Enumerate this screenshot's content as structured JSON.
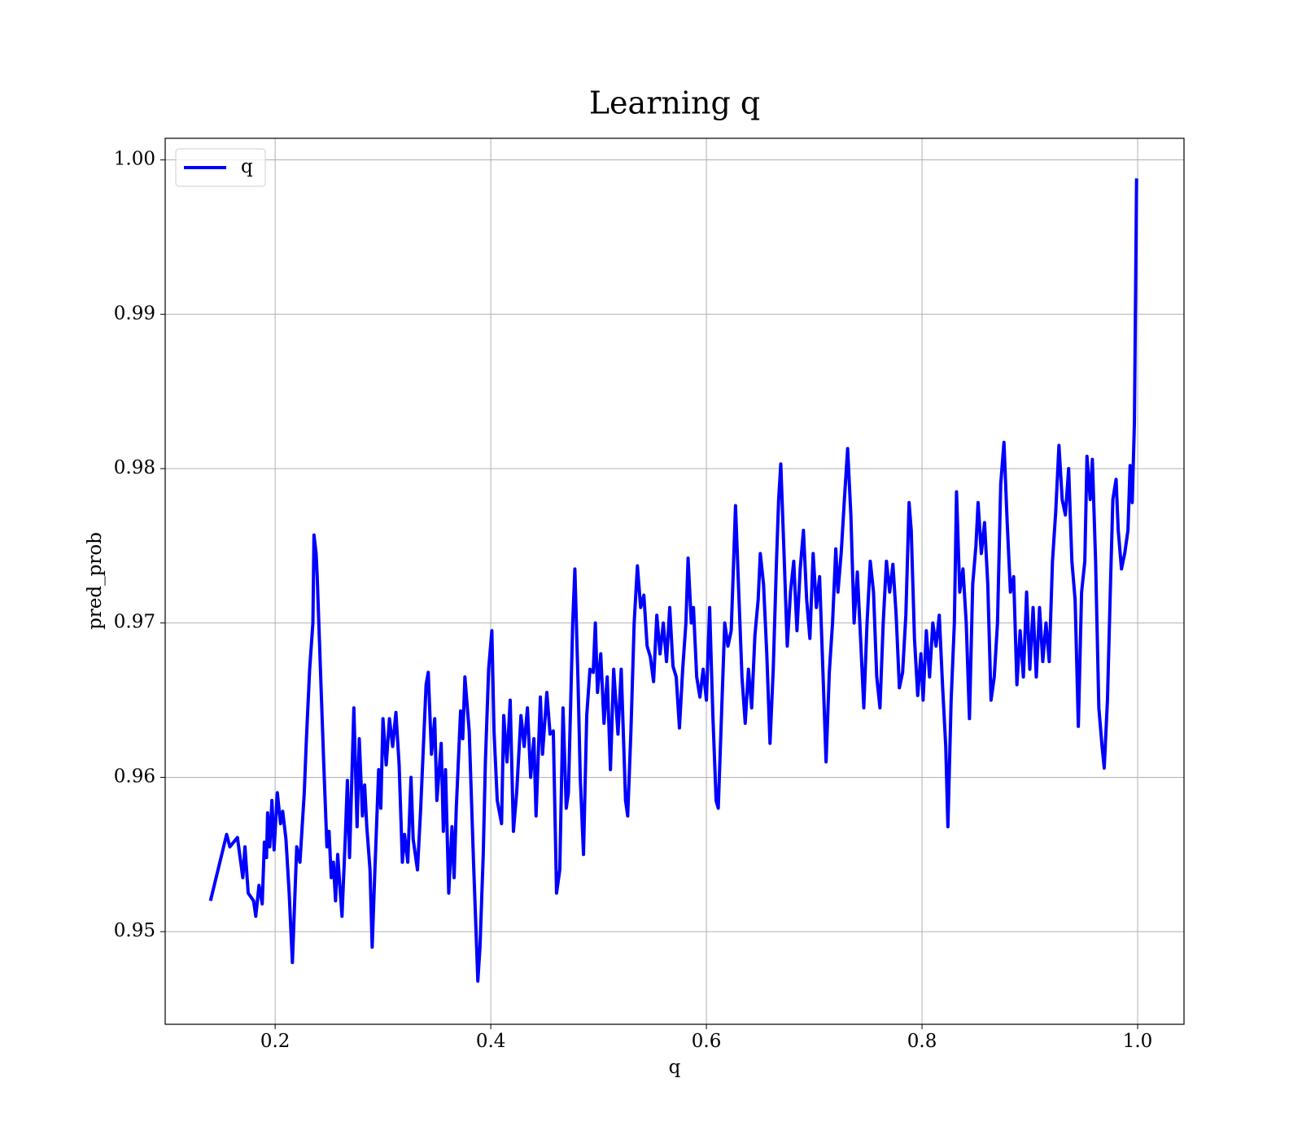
{
  "chart_data": {
    "type": "line",
    "title": "Learning q",
    "xlabel": "q",
    "ylabel": "pred_prob",
    "x": [
      0.14,
      0.155,
      0.158,
      0.165,
      0.17,
      0.172,
      0.175,
      0.18,
      0.182,
      0.185,
      0.188,
      0.19,
      0.192,
      0.193,
      0.195,
      0.197,
      0.199,
      0.202,
      0.205,
      0.207,
      0.21,
      0.213,
      0.216,
      0.22,
      0.223,
      0.227,
      0.229,
      0.232,
      0.235,
      0.236,
      0.238,
      0.239,
      0.242,
      0.245,
      0.248,
      0.25,
      0.252,
      0.254,
      0.256,
      0.258,
      0.262,
      0.265,
      0.267,
      0.269,
      0.273,
      0.276,
      0.278,
      0.281,
      0.283,
      0.285,
      0.288,
      0.29,
      0.292,
      0.296,
      0.298,
      0.3,
      0.303,
      0.306,
      0.309,
      0.312,
      0.315,
      0.318,
      0.32,
      0.323,
      0.326,
      0.328,
      0.332,
      0.335,
      0.34,
      0.342,
      0.345,
      0.348,
      0.35,
      0.354,
      0.356,
      0.358,
      0.361,
      0.364,
      0.366,
      0.368,
      0.372,
      0.374,
      0.376,
      0.38,
      0.384,
      0.388,
      0.39,
      0.393,
      0.395,
      0.398,
      0.401,
      0.403,
      0.406,
      0.41,
      0.412,
      0.415,
      0.418,
      0.421,
      0.424,
      0.428,
      0.431,
      0.434,
      0.437,
      0.44,
      0.442,
      0.446,
      0.448,
      0.452,
      0.455,
      0.458,
      0.461,
      0.464,
      0.467,
      0.47,
      0.472,
      0.476,
      0.478,
      0.481,
      0.483,
      0.486,
      0.489,
      0.492,
      0.495,
      0.497,
      0.499,
      0.502,
      0.505,
      0.508,
      0.511,
      0.514,
      0.518,
      0.521,
      0.525,
      0.527,
      0.53,
      0.533,
      0.536,
      0.539,
      0.542,
      0.545,
      0.548,
      0.551,
      0.554,
      0.557,
      0.56,
      0.563,
      0.566,
      0.569,
      0.572,
      0.575,
      0.578,
      0.581,
      0.583,
      0.586,
      0.588,
      0.591,
      0.594,
      0.597,
      0.6,
      0.603,
      0.606,
      0.609,
      0.611,
      0.614,
      0.617,
      0.62,
      0.623,
      0.625,
      0.627,
      0.63,
      0.633,
      0.636,
      0.639,
      0.642,
      0.645,
      0.648,
      0.65,
      0.653,
      0.656,
      0.659,
      0.662,
      0.665,
      0.667,
      0.669,
      0.672,
      0.675,
      0.678,
      0.681,
      0.684,
      0.687,
      0.69,
      0.693,
      0.696,
      0.699,
      0.702,
      0.705,
      0.708,
      0.711,
      0.714,
      0.717,
      0.72,
      0.722,
      0.725,
      0.728,
      0.731,
      0.734,
      0.737,
      0.74,
      0.743,
      0.746,
      0.749,
      0.752,
      0.755,
      0.758,
      0.761,
      0.764,
      0.767,
      0.77,
      0.773,
      0.776,
      0.779,
      0.782,
      0.785,
      0.788,
      0.79,
      0.793,
      0.796,
      0.799,
      0.801,
      0.804,
      0.807,
      0.81,
      0.813,
      0.816,
      0.819,
      0.822,
      0.824,
      0.827,
      0.83,
      0.832,
      0.835,
      0.838,
      0.841,
      0.844,
      0.847,
      0.85,
      0.852,
      0.855,
      0.858,
      0.861,
      0.864,
      0.867,
      0.87,
      0.873,
      0.876,
      0.879,
      0.882,
      0.885,
      0.888,
      0.891,
      0.894,
      0.897,
      0.9,
      0.903,
      0.906,
      0.909,
      0.912,
      0.915,
      0.918,
      0.921,
      0.924,
      0.927,
      0.93,
      0.933,
      0.936,
      0.939,
      0.942,
      0.945,
      0.948,
      0.951,
      0.953,
      0.956,
      0.958,
      0.961,
      0.964,
      0.967,
      0.969,
      0.972,
      0.975,
      0.977,
      0.98,
      0.982,
      0.985,
      0.988,
      0.991,
      0.993,
      0.995,
      0.997,
      0.999
    ],
    "series": [
      {
        "name": "q",
        "color": "#0000ff",
        "values": [
          0.952,
          0.9563,
          0.9555,
          0.9561,
          0.9535,
          0.9555,
          0.9525,
          0.952,
          0.951,
          0.953,
          0.9518,
          0.9558,
          0.9548,
          0.9577,
          0.9555,
          0.9585,
          0.9553,
          0.959,
          0.957,
          0.9578,
          0.956,
          0.9525,
          0.948,
          0.9555,
          0.9545,
          0.959,
          0.9625,
          0.967,
          0.97,
          0.9757,
          0.9745,
          0.973,
          0.967,
          0.961,
          0.9555,
          0.9565,
          0.9535,
          0.9545,
          0.952,
          0.955,
          0.951,
          0.956,
          0.9598,
          0.9548,
          0.9645,
          0.9568,
          0.9625,
          0.9575,
          0.9595,
          0.9568,
          0.954,
          0.949,
          0.953,
          0.9605,
          0.958,
          0.9638,
          0.9608,
          0.9638,
          0.962,
          0.9642,
          0.9608,
          0.9545,
          0.9563,
          0.9545,
          0.96,
          0.956,
          0.954,
          0.958,
          0.966,
          0.9668,
          0.9615,
          0.9638,
          0.9585,
          0.9622,
          0.9565,
          0.9605,
          0.9525,
          0.9568,
          0.9535,
          0.958,
          0.9643,
          0.9625,
          0.9665,
          0.963,
          0.9545,
          0.9468,
          0.949,
          0.955,
          0.961,
          0.967,
          0.9695,
          0.963,
          0.9585,
          0.957,
          0.964,
          0.961,
          0.965,
          0.9565,
          0.959,
          0.964,
          0.962,
          0.9645,
          0.96,
          0.9625,
          0.9575,
          0.9652,
          0.9615,
          0.9655,
          0.9628,
          0.963,
          0.9525,
          0.954,
          0.9645,
          0.958,
          0.959,
          0.97,
          0.9735,
          0.966,
          0.96,
          0.955,
          0.964,
          0.967,
          0.9668,
          0.97,
          0.9655,
          0.968,
          0.9635,
          0.9665,
          0.9605,
          0.967,
          0.9628,
          0.967,
          0.9585,
          0.9575,
          0.963,
          0.97,
          0.9737,
          0.971,
          0.9718,
          0.9685,
          0.9678,
          0.9662,
          0.9705,
          0.968,
          0.97,
          0.9675,
          0.971,
          0.9672,
          0.9665,
          0.9632,
          0.967,
          0.97,
          0.9742,
          0.97,
          0.971,
          0.9665,
          0.9652,
          0.967,
          0.965,
          0.971,
          0.964,
          0.9585,
          0.958,
          0.964,
          0.97,
          0.9685,
          0.9695,
          0.9735,
          0.9776,
          0.972,
          0.9665,
          0.9635,
          0.967,
          0.9645,
          0.9692,
          0.9715,
          0.9745,
          0.9725,
          0.968,
          0.9622,
          0.967,
          0.974,
          0.978,
          0.9803,
          0.9745,
          0.9685,
          0.972,
          0.974,
          0.9695,
          0.9735,
          0.976,
          0.9715,
          0.969,
          0.9745,
          0.971,
          0.973,
          0.967,
          0.961,
          0.9668,
          0.97,
          0.9748,
          0.972,
          0.9745,
          0.978,
          0.9813,
          0.977,
          0.97,
          0.9733,
          0.969,
          0.9645,
          0.97,
          0.974,
          0.972,
          0.9665,
          0.9645,
          0.97,
          0.974,
          0.972,
          0.9738,
          0.9705,
          0.9658,
          0.9668,
          0.9705,
          0.9778,
          0.976,
          0.969,
          0.9653,
          0.968,
          0.965,
          0.9695,
          0.9665,
          0.97,
          0.9685,
          0.9705,
          0.966,
          0.962,
          0.9568,
          0.965,
          0.97,
          0.9785,
          0.972,
          0.9735,
          0.97,
          0.9638,
          0.9725,
          0.975,
          0.9778,
          0.9745,
          0.9765,
          0.9725,
          0.965,
          0.9665,
          0.97,
          0.979,
          0.9817,
          0.9765,
          0.972,
          0.973,
          0.966,
          0.9695,
          0.9665,
          0.972,
          0.967,
          0.971,
          0.9665,
          0.971,
          0.9675,
          0.97,
          0.9675,
          0.974,
          0.9772,
          0.9815,
          0.978,
          0.977,
          0.98,
          0.974,
          0.9715,
          0.9633,
          0.972,
          0.974,
          0.9808,
          0.978,
          0.9806,
          0.974,
          0.9645,
          0.962,
          0.9606,
          0.965,
          0.973,
          0.978,
          0.9793,
          0.976,
          0.9735,
          0.9745,
          0.976,
          0.9802,
          0.9778,
          0.983,
          0.9988
        ]
      }
    ],
    "xlim": [
      0.098,
      1.043
    ],
    "ylim": [
      0.944,
      1.0014
    ],
    "xticks": [
      0.2,
      0.4,
      0.6,
      0.8,
      {
        "value": 1,
        "label": "1.0"
      }
    ],
    "yticks": [
      0.95,
      0.96,
      0.97,
      0.98,
      0.99,
      {
        "value": 1,
        "label": "1.00"
      }
    ],
    "grid": true,
    "legend": "upper left"
  }
}
